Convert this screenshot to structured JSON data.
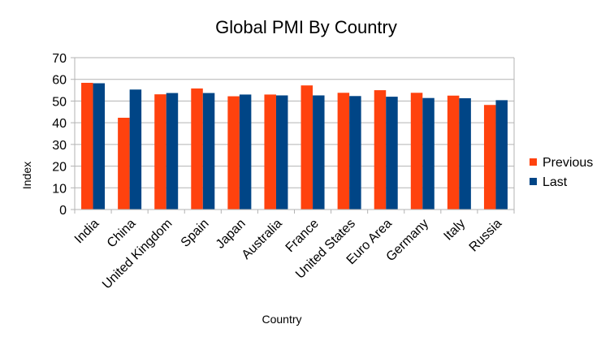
{
  "chart_data": {
    "type": "bar",
    "title": "Global PMI By Country",
    "xlabel": "Country",
    "ylabel": "Index",
    "ylim": [
      0,
      70
    ],
    "ytick_step": 10,
    "grid": true,
    "legend_position": "right",
    "categories": [
      "India",
      "China",
      "United Kingdom",
      "Spain",
      "Japan",
      "Australia",
      "France",
      "United States",
      "Euro Area",
      "Germany",
      "Italy",
      "Russia"
    ],
    "series": [
      {
        "name": "Previous",
        "color": "#ff420e",
        "values": [
          58.4,
          42.3,
          53.1,
          55.8,
          52.2,
          53.0,
          57.2,
          53.8,
          55.0,
          53.8,
          52.5,
          48.2
        ]
      },
      {
        "name": "Last",
        "color": "#004586",
        "values": [
          58.2,
          55.3,
          53.7,
          53.7,
          53.0,
          52.6,
          52.6,
          52.3,
          52.0,
          51.4,
          51.3,
          50.4
        ]
      }
    ]
  }
}
